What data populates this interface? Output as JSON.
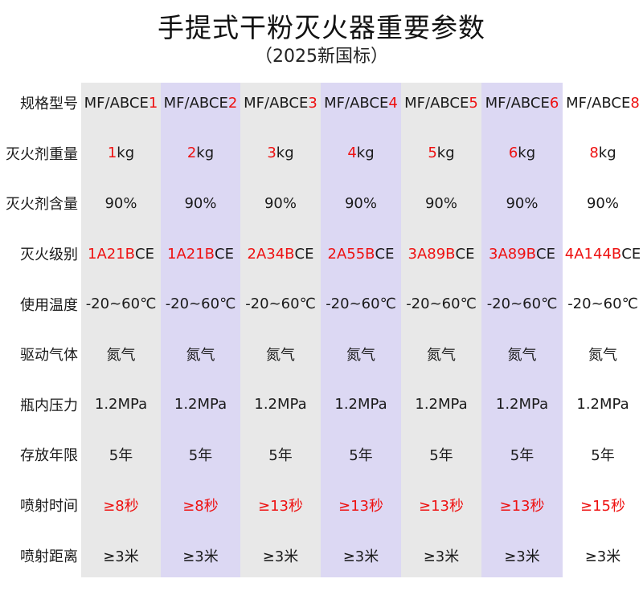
{
  "title": "手提式干粉灭火器重要参数",
  "subtitle": "（2025新国标）",
  "colors": {
    "band_gray": "#e8e8e8",
    "band_purple": "#dcd8f3",
    "highlight": "#ee1111"
  },
  "rows": [
    {
      "label": "规格型号",
      "cells": [
        {
          "a": "MF/ABCE",
          "b": "1",
          "c": ""
        },
        {
          "a": "MF/ABCE",
          "b": "2",
          "c": ""
        },
        {
          "a": "MF/ABCE",
          "b": "3",
          "c": ""
        },
        {
          "a": "MF/ABCE",
          "b": "4",
          "c": ""
        },
        {
          "a": "MF/ABCE",
          "b": "5",
          "c": ""
        },
        {
          "a": "MF/ABCE",
          "b": "6",
          "c": ""
        },
        {
          "a": "MF/ABCE",
          "b": "8",
          "c": ""
        }
      ]
    },
    {
      "label": "灭火剂重量",
      "cells": [
        {
          "a": "",
          "b": "1",
          "c": "kg"
        },
        {
          "a": "",
          "b": "2",
          "c": "kg"
        },
        {
          "a": "",
          "b": "3",
          "c": "kg"
        },
        {
          "a": "",
          "b": "4",
          "c": "kg"
        },
        {
          "a": "",
          "b": "5",
          "c": "kg"
        },
        {
          "a": "",
          "b": "6",
          "c": "kg"
        },
        {
          "a": "",
          "b": "8",
          "c": "kg"
        }
      ]
    },
    {
      "label": "灭火剂含量",
      "cells": [
        {
          "a": "90%",
          "b": "",
          "c": ""
        },
        {
          "a": "90%",
          "b": "",
          "c": ""
        },
        {
          "a": "90%",
          "b": "",
          "c": ""
        },
        {
          "a": "90%",
          "b": "",
          "c": ""
        },
        {
          "a": "90%",
          "b": "",
          "c": ""
        },
        {
          "a": "90%",
          "b": "",
          "c": ""
        },
        {
          "a": "90%",
          "b": "",
          "c": ""
        }
      ]
    },
    {
      "label": "灭火级别",
      "cells": [
        {
          "a": "",
          "b": "1A21B",
          "c": "CE"
        },
        {
          "a": "",
          "b": "1A21B",
          "c": "CE"
        },
        {
          "a": "",
          "b": "2A34B",
          "c": "CE"
        },
        {
          "a": "",
          "b": "2A55B",
          "c": "CE"
        },
        {
          "a": "",
          "b": "3A89B",
          "c": "CE"
        },
        {
          "a": "",
          "b": "3A89B",
          "c": "CE"
        },
        {
          "a": "",
          "b": "4A144B",
          "c": "CE"
        }
      ]
    },
    {
      "label": "使用温度",
      "cells": [
        {
          "a": "-20~60℃",
          "b": "",
          "c": ""
        },
        {
          "a": "-20~60℃",
          "b": "",
          "c": ""
        },
        {
          "a": "-20~60℃",
          "b": "",
          "c": ""
        },
        {
          "a": "-20~60℃",
          "b": "",
          "c": ""
        },
        {
          "a": "-20~60℃",
          "b": "",
          "c": ""
        },
        {
          "a": "-20~60℃",
          "b": "",
          "c": ""
        },
        {
          "a": "-20~60℃",
          "b": "",
          "c": ""
        }
      ]
    },
    {
      "label": "驱动气体",
      "cells": [
        {
          "a": "氮气",
          "b": "",
          "c": ""
        },
        {
          "a": "氮气",
          "b": "",
          "c": ""
        },
        {
          "a": "氮气",
          "b": "",
          "c": ""
        },
        {
          "a": "氮气",
          "b": "",
          "c": ""
        },
        {
          "a": "氮气",
          "b": "",
          "c": ""
        },
        {
          "a": "氮气",
          "b": "",
          "c": ""
        },
        {
          "a": "氮气",
          "b": "",
          "c": ""
        }
      ]
    },
    {
      "label": "瓶内压力",
      "cells": [
        {
          "a": "1.2MPa",
          "b": "",
          "c": ""
        },
        {
          "a": "1.2MPa",
          "b": "",
          "c": ""
        },
        {
          "a": "1.2MPa",
          "b": "",
          "c": ""
        },
        {
          "a": "1.2MPa",
          "b": "",
          "c": ""
        },
        {
          "a": "1.2MPa",
          "b": "",
          "c": ""
        },
        {
          "a": "1.2MPa",
          "b": "",
          "c": ""
        },
        {
          "a": "1.2MPa",
          "b": "",
          "c": ""
        }
      ]
    },
    {
      "label": "存放年限",
      "cells": [
        {
          "a": "5年",
          "b": "",
          "c": ""
        },
        {
          "a": "5年",
          "b": "",
          "c": ""
        },
        {
          "a": "5年",
          "b": "",
          "c": ""
        },
        {
          "a": "5年",
          "b": "",
          "c": ""
        },
        {
          "a": "5年",
          "b": "",
          "c": ""
        },
        {
          "a": "5年",
          "b": "",
          "c": ""
        },
        {
          "a": "5年",
          "b": "",
          "c": ""
        }
      ]
    },
    {
      "label": "喷射时间",
      "cells": [
        {
          "a": "",
          "b": "≥8秒",
          "c": ""
        },
        {
          "a": "",
          "b": "≥8秒",
          "c": ""
        },
        {
          "a": "",
          "b": "≥13秒",
          "c": ""
        },
        {
          "a": "",
          "b": "≥13秒",
          "c": ""
        },
        {
          "a": "",
          "b": "≥13秒",
          "c": ""
        },
        {
          "a": "",
          "b": "≥13秒",
          "c": ""
        },
        {
          "a": "",
          "b": "≥15秒",
          "c": ""
        }
      ]
    },
    {
      "label": "喷射距离",
      "cells": [
        {
          "a": "≥3米",
          "b": "",
          "c": ""
        },
        {
          "a": "≥3米",
          "b": "",
          "c": ""
        },
        {
          "a": "≥3米",
          "b": "",
          "c": ""
        },
        {
          "a": "≥3米",
          "b": "",
          "c": ""
        },
        {
          "a": "≥3米",
          "b": "",
          "c": ""
        },
        {
          "a": "≥3米",
          "b": "",
          "c": ""
        },
        {
          "a": "≥3米",
          "b": "",
          "c": ""
        }
      ]
    }
  ]
}
